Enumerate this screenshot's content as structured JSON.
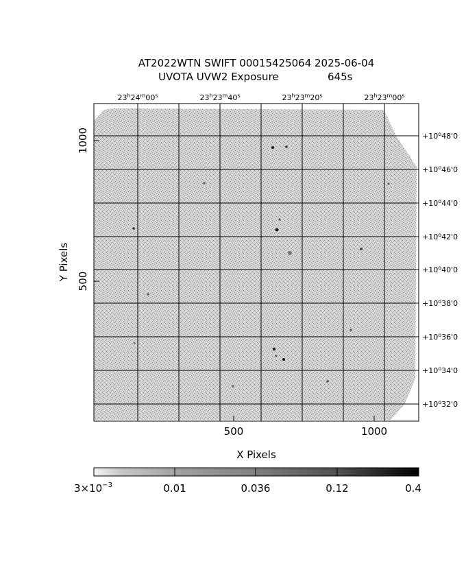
{
  "chart_data": {
    "type": "heatmap",
    "title": "AT2022WTN SWIFT 00015425064 2025-06-04",
    "subtitle": "UVOTA UVW2 Exposure",
    "exposure": "645s",
    "xlabel": "X Pixels",
    "ylabel": "Y Pixels",
    "xlim": [
      0,
      1160
    ],
    "ylim": [
      0,
      1130
    ],
    "x_ticks": [
      500,
      1000
    ],
    "y_ticks": [
      500,
      1000
    ],
    "x_tick_labels": [
      "500",
      "1000"
    ],
    "y_tick_labels": [
      "500",
      "1000"
    ],
    "ra_labels": [
      {
        "h": "23",
        "m": "24",
        "s": "00"
      },
      {
        "h": "23",
        "m": "23",
        "s": "40"
      },
      {
        "h": "23",
        "m": "23",
        "s": "20"
      },
      {
        "h": "23",
        "m": "23",
        "s": "00"
      }
    ],
    "dec_labels": [
      {
        "deg": "+10",
        "min": "48",
        "sec": "0"
      },
      {
        "deg": "+10",
        "min": "46",
        "sec": "0"
      },
      {
        "deg": "+10",
        "min": "44",
        "sec": "0"
      },
      {
        "deg": "+10",
        "min": "42",
        "sec": "0"
      },
      {
        "deg": "+10",
        "min": "40",
        "sec": "0"
      },
      {
        "deg": "+10",
        "min": "38",
        "sec": "0"
      },
      {
        "deg": "+10",
        "min": "36",
        "sec": "0"
      },
      {
        "deg": "+10",
        "min": "34",
        "sec": "0"
      },
      {
        "deg": "+10",
        "min": "32",
        "sec": "0"
      }
    ],
    "colorbar": {
      "scale": "log",
      "min": 0.003,
      "max": 0.4,
      "labels": [
        "3×10",
        "0.01",
        "0.036",
        "0.12",
        "0.4"
      ],
      "first_label_exponent": "−3"
    },
    "grid": true
  }
}
